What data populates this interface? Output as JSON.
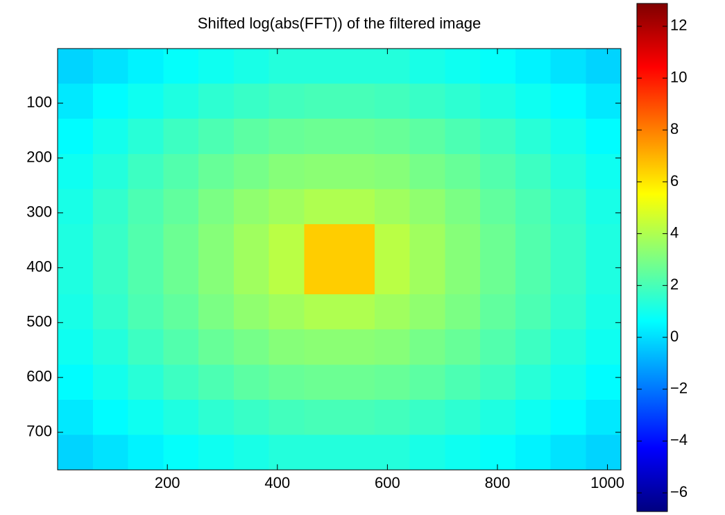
{
  "chart_data": {
    "type": "heatmap",
    "title": "Shifted log(abs(FFT)) of the filtered image",
    "colormap": "jet",
    "ydir": "reverse",
    "xlim": [
      0.5,
      1024.5
    ],
    "ylim": [
      0.5,
      768.5
    ],
    "xticks": [
      200,
      400,
      600,
      800,
      1000
    ],
    "yticks": [
      100,
      200,
      300,
      400,
      500,
      600,
      700
    ],
    "clim": [
      -6.72,
      12.88
    ],
    "cticks": [
      -6,
      -4,
      -2,
      0,
      2,
      4,
      6,
      8,
      10,
      12
    ],
    "z": [
      [
        -0.2,
        0.1,
        0.4,
        0.7,
        0.9,
        1.1,
        1.3,
        1.3,
        1.3,
        1.3,
        1.1,
        0.9,
        0.7,
        0.4,
        0.1,
        -0.2
      ],
      [
        0.2,
        0.6,
        0.9,
        1.2,
        1.5,
        1.7,
        1.9,
        2.0,
        2.0,
        1.9,
        1.7,
        1.5,
        1.2,
        0.9,
        0.6,
        0.2
      ],
      [
        0.6,
        1.0,
        1.4,
        1.8,
        2.1,
        2.4,
        2.6,
        2.7,
        2.7,
        2.6,
        2.4,
        2.1,
        1.8,
        1.4,
        1.0,
        0.6
      ],
      [
        0.9,
        1.3,
        1.8,
        2.2,
        2.6,
        2.9,
        3.2,
        3.3,
        3.3,
        3.2,
        2.9,
        2.6,
        2.2,
        1.8,
        1.3,
        0.9
      ],
      [
        1.1,
        1.6,
        2.1,
        2.5,
        3.0,
        3.4,
        3.7,
        4.0,
        4.0,
        3.7,
        3.4,
        3.0,
        2.5,
        2.1,
        1.6,
        1.1
      ],
      [
        1.2,
        1.7,
        2.2,
        2.7,
        3.2,
        3.7,
        4.2,
        6.5,
        6.5,
        4.2,
        3.7,
        3.2,
        2.7,
        2.2,
        1.7,
        1.2
      ],
      [
        1.2,
        1.7,
        2.2,
        2.7,
        3.2,
        3.7,
        4.2,
        6.5,
        6.5,
        4.2,
        3.7,
        3.2,
        2.7,
        2.2,
        1.7,
        1.2
      ],
      [
        1.1,
        1.6,
        2.1,
        2.5,
        3.0,
        3.4,
        3.7,
        4.0,
        4.0,
        3.7,
        3.4,
        3.0,
        2.5,
        2.1,
        1.6,
        1.1
      ],
      [
        0.9,
        1.3,
        1.8,
        2.2,
        2.6,
        2.9,
        3.2,
        3.3,
        3.3,
        3.2,
        2.9,
        2.6,
        2.2,
        1.8,
        1.3,
        0.9
      ],
      [
        0.6,
        1.0,
        1.4,
        1.8,
        2.1,
        2.4,
        2.6,
        2.7,
        2.7,
        2.6,
        2.4,
        2.1,
        1.8,
        1.4,
        1.0,
        0.6
      ],
      [
        0.2,
        0.6,
        0.9,
        1.2,
        1.5,
        1.7,
        1.9,
        2.0,
        2.0,
        1.9,
        1.7,
        1.5,
        1.2,
        0.9,
        0.6,
        0.2
      ],
      [
        -0.2,
        0.1,
        0.4,
        0.7,
        0.9,
        1.1,
        1.3,
        1.3,
        1.3,
        1.3,
        1.1,
        0.9,
        0.7,
        0.4,
        0.1,
        -0.2
      ]
    ]
  }
}
